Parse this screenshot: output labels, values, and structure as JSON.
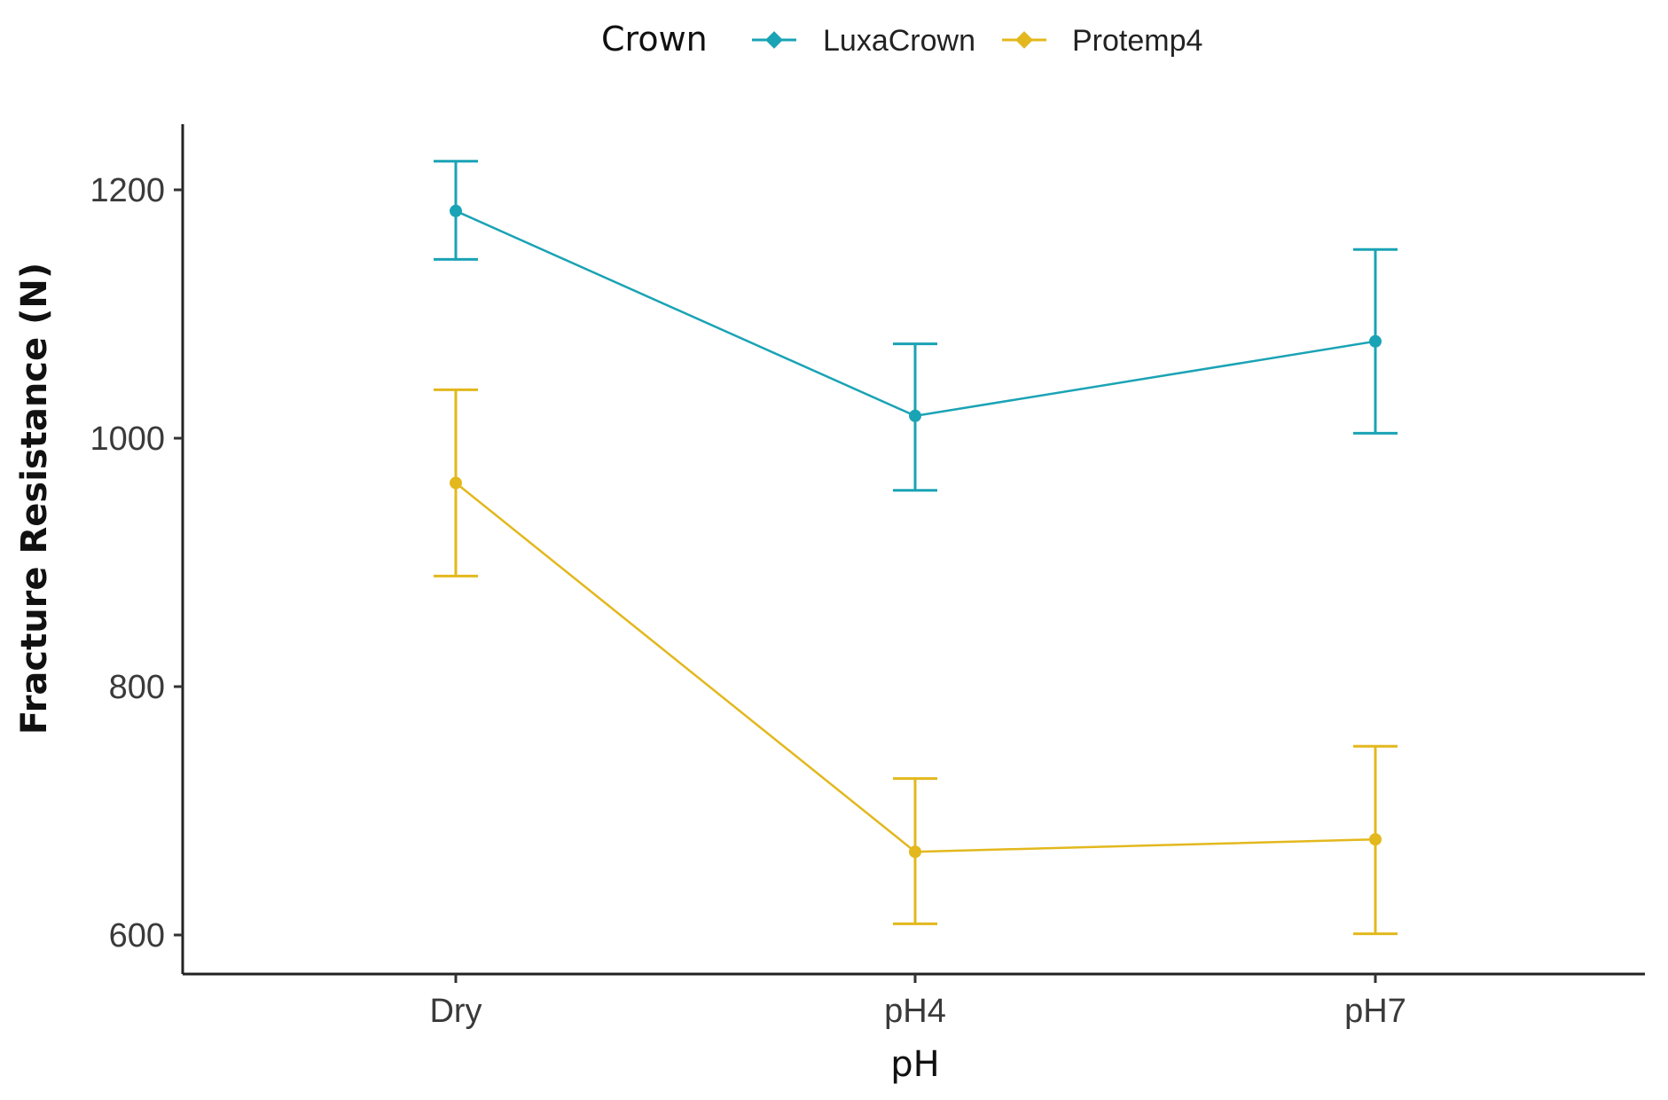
{
  "chart_data": {
    "type": "line",
    "title": "",
    "xlabel": "pH",
    "ylabel": "Fracture Resistance (N)",
    "categories": [
      "Dry",
      "pH4",
      "pH7"
    ],
    "ylim": [
      570,
      1255
    ],
    "yticks": [
      600,
      800,
      1000,
      1200
    ],
    "ytick_labels": [
      "600",
      "800",
      "1000",
      "1200"
    ],
    "grid": false,
    "legend": {
      "title": "Crown",
      "position": "top"
    },
    "series": [
      {
        "name": "LuxaCrown",
        "color": "#1aa3b5",
        "values": [
          1183,
          1018,
          1078
        ],
        "err_low": [
          1144,
          958,
          1004
        ],
        "err_high": [
          1223,
          1076,
          1152
        ]
      },
      {
        "name": "Protemp4",
        "color": "#e3b81d",
        "values": [
          964,
          667,
          677
        ],
        "err_low": [
          889,
          609,
          601
        ],
        "err_high": [
          1039,
          726,
          752
        ]
      }
    ]
  }
}
